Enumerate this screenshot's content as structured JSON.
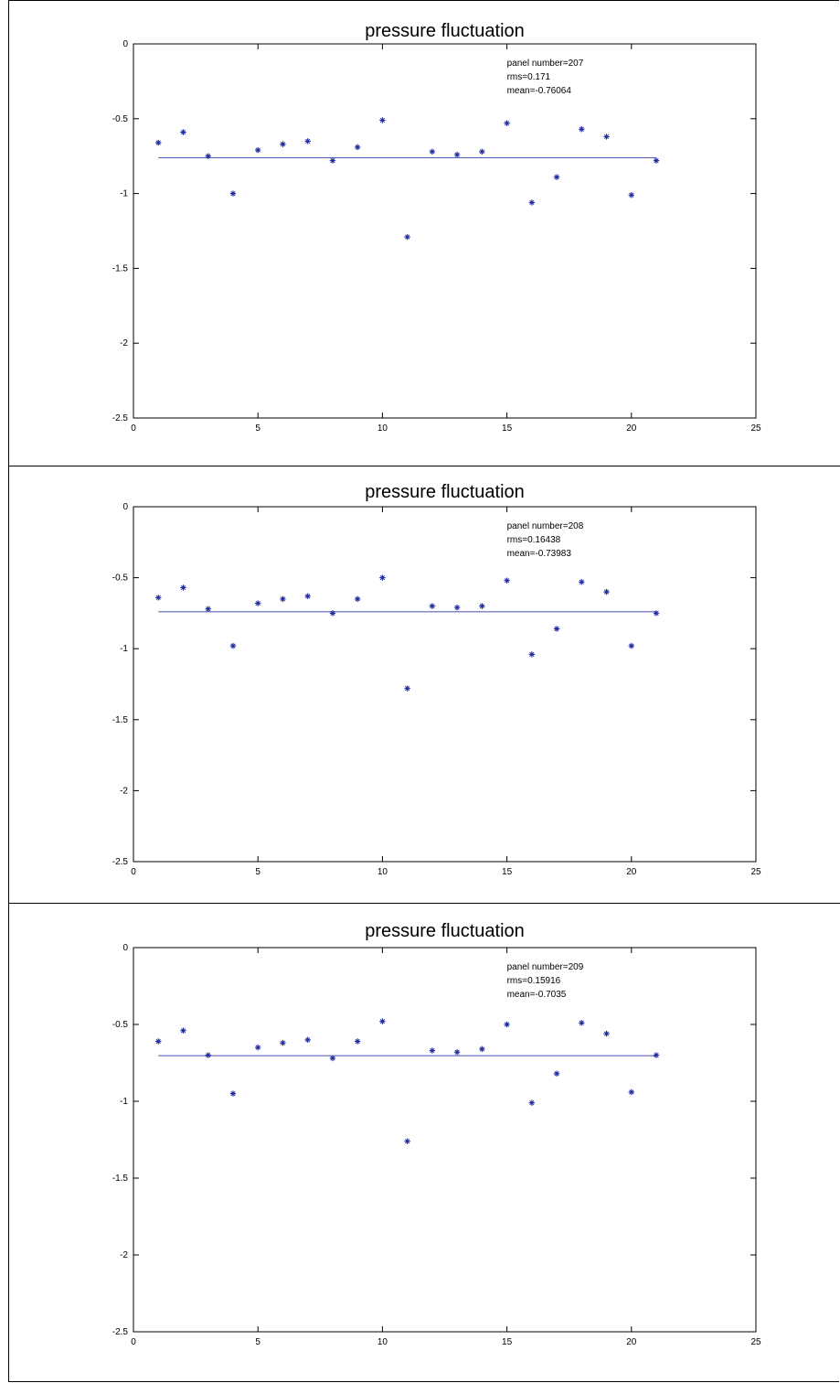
{
  "chart_data": [
    {
      "type": "scatter",
      "title": "pressure fluctuation",
      "xlim": [
        0,
        25
      ],
      "ylim": [
        -2.5,
        0
      ],
      "x_ticks": [
        "0",
        "5",
        "10",
        "15",
        "20",
        "25"
      ],
      "y_ticks": [
        "0",
        "-0.5",
        "-1",
        "-1.5",
        "-2",
        "-2.5"
      ],
      "annotations": [
        "panel number=207",
        "rms=0.171",
        "mean=-0.76064"
      ],
      "mean_line": {
        "x": [
          1,
          21
        ],
        "y": -0.76064
      },
      "series": [
        {
          "marker": "*",
          "color": "#1f2a9e",
          "x": [
            1,
            2,
            3,
            4,
            5,
            6,
            7,
            8,
            9,
            10,
            11,
            12,
            13,
            14,
            15,
            16,
            17,
            18,
            19,
            20,
            21
          ],
          "y": [
            -0.66,
            -0.59,
            -0.75,
            -1.0,
            -0.71,
            -0.67,
            -0.65,
            -0.78,
            -0.69,
            -0.51,
            -1.29,
            -0.72,
            -0.74,
            -0.72,
            -0.53,
            -1.06,
            -0.89,
            -0.57,
            -0.62,
            -1.01,
            -0.78
          ]
        }
      ],
      "grid": false
    },
    {
      "type": "scatter",
      "title": "pressure fluctuation",
      "xlim": [
        0,
        25
      ],
      "ylim": [
        -2.5,
        0
      ],
      "x_ticks": [
        "0",
        "5",
        "10",
        "15",
        "20",
        "25"
      ],
      "y_ticks": [
        "0",
        "-0.5",
        "-1",
        "-1.5",
        "-2",
        "-2.5"
      ],
      "annotations": [
        "panel number=208",
        "rms=0.16438",
        "mean=-0.73983"
      ],
      "mean_line": {
        "x": [
          1,
          21
        ],
        "y": -0.73983
      },
      "series": [
        {
          "marker": "*",
          "color": "#1f2a9e",
          "x": [
            1,
            2,
            3,
            4,
            5,
            6,
            7,
            8,
            9,
            10,
            11,
            12,
            13,
            14,
            15,
            16,
            17,
            18,
            19,
            20,
            21
          ],
          "y": [
            -0.64,
            -0.57,
            -0.72,
            -0.98,
            -0.68,
            -0.65,
            -0.63,
            -0.75,
            -0.65,
            -0.5,
            -1.28,
            -0.7,
            -0.71,
            -0.7,
            -0.52,
            -1.04,
            -0.86,
            -0.53,
            -0.6,
            -0.98,
            -0.75
          ]
        }
      ],
      "grid": false
    },
    {
      "type": "scatter",
      "title": "pressure fluctuation",
      "xlim": [
        0,
        25
      ],
      "ylim": [
        -2.5,
        0
      ],
      "x_ticks": [
        "0",
        "5",
        "10",
        "15",
        "20",
        "25"
      ],
      "y_ticks": [
        "0",
        "-0.5",
        "-1",
        "-1.5",
        "-2",
        "-2.5"
      ],
      "annotations": [
        "panel number=209",
        "rms=0.15916",
        "mean=-0.7035"
      ],
      "mean_line": {
        "x": [
          1,
          21
        ],
        "y": -0.7035
      },
      "series": [
        {
          "marker": "*",
          "color": "#1f2a9e",
          "x": [
            1,
            2,
            3,
            4,
            5,
            6,
            7,
            8,
            9,
            10,
            11,
            12,
            13,
            14,
            15,
            16,
            17,
            18,
            19,
            20,
            21
          ],
          "y": [
            -0.61,
            -0.54,
            -0.7,
            -0.95,
            -0.65,
            -0.62,
            -0.6,
            -0.72,
            -0.61,
            -0.48,
            -1.26,
            -0.67,
            -0.68,
            -0.66,
            -0.5,
            -1.01,
            -0.82,
            -0.49,
            -0.56,
            -0.94,
            -0.7
          ]
        }
      ],
      "grid": false
    }
  ]
}
